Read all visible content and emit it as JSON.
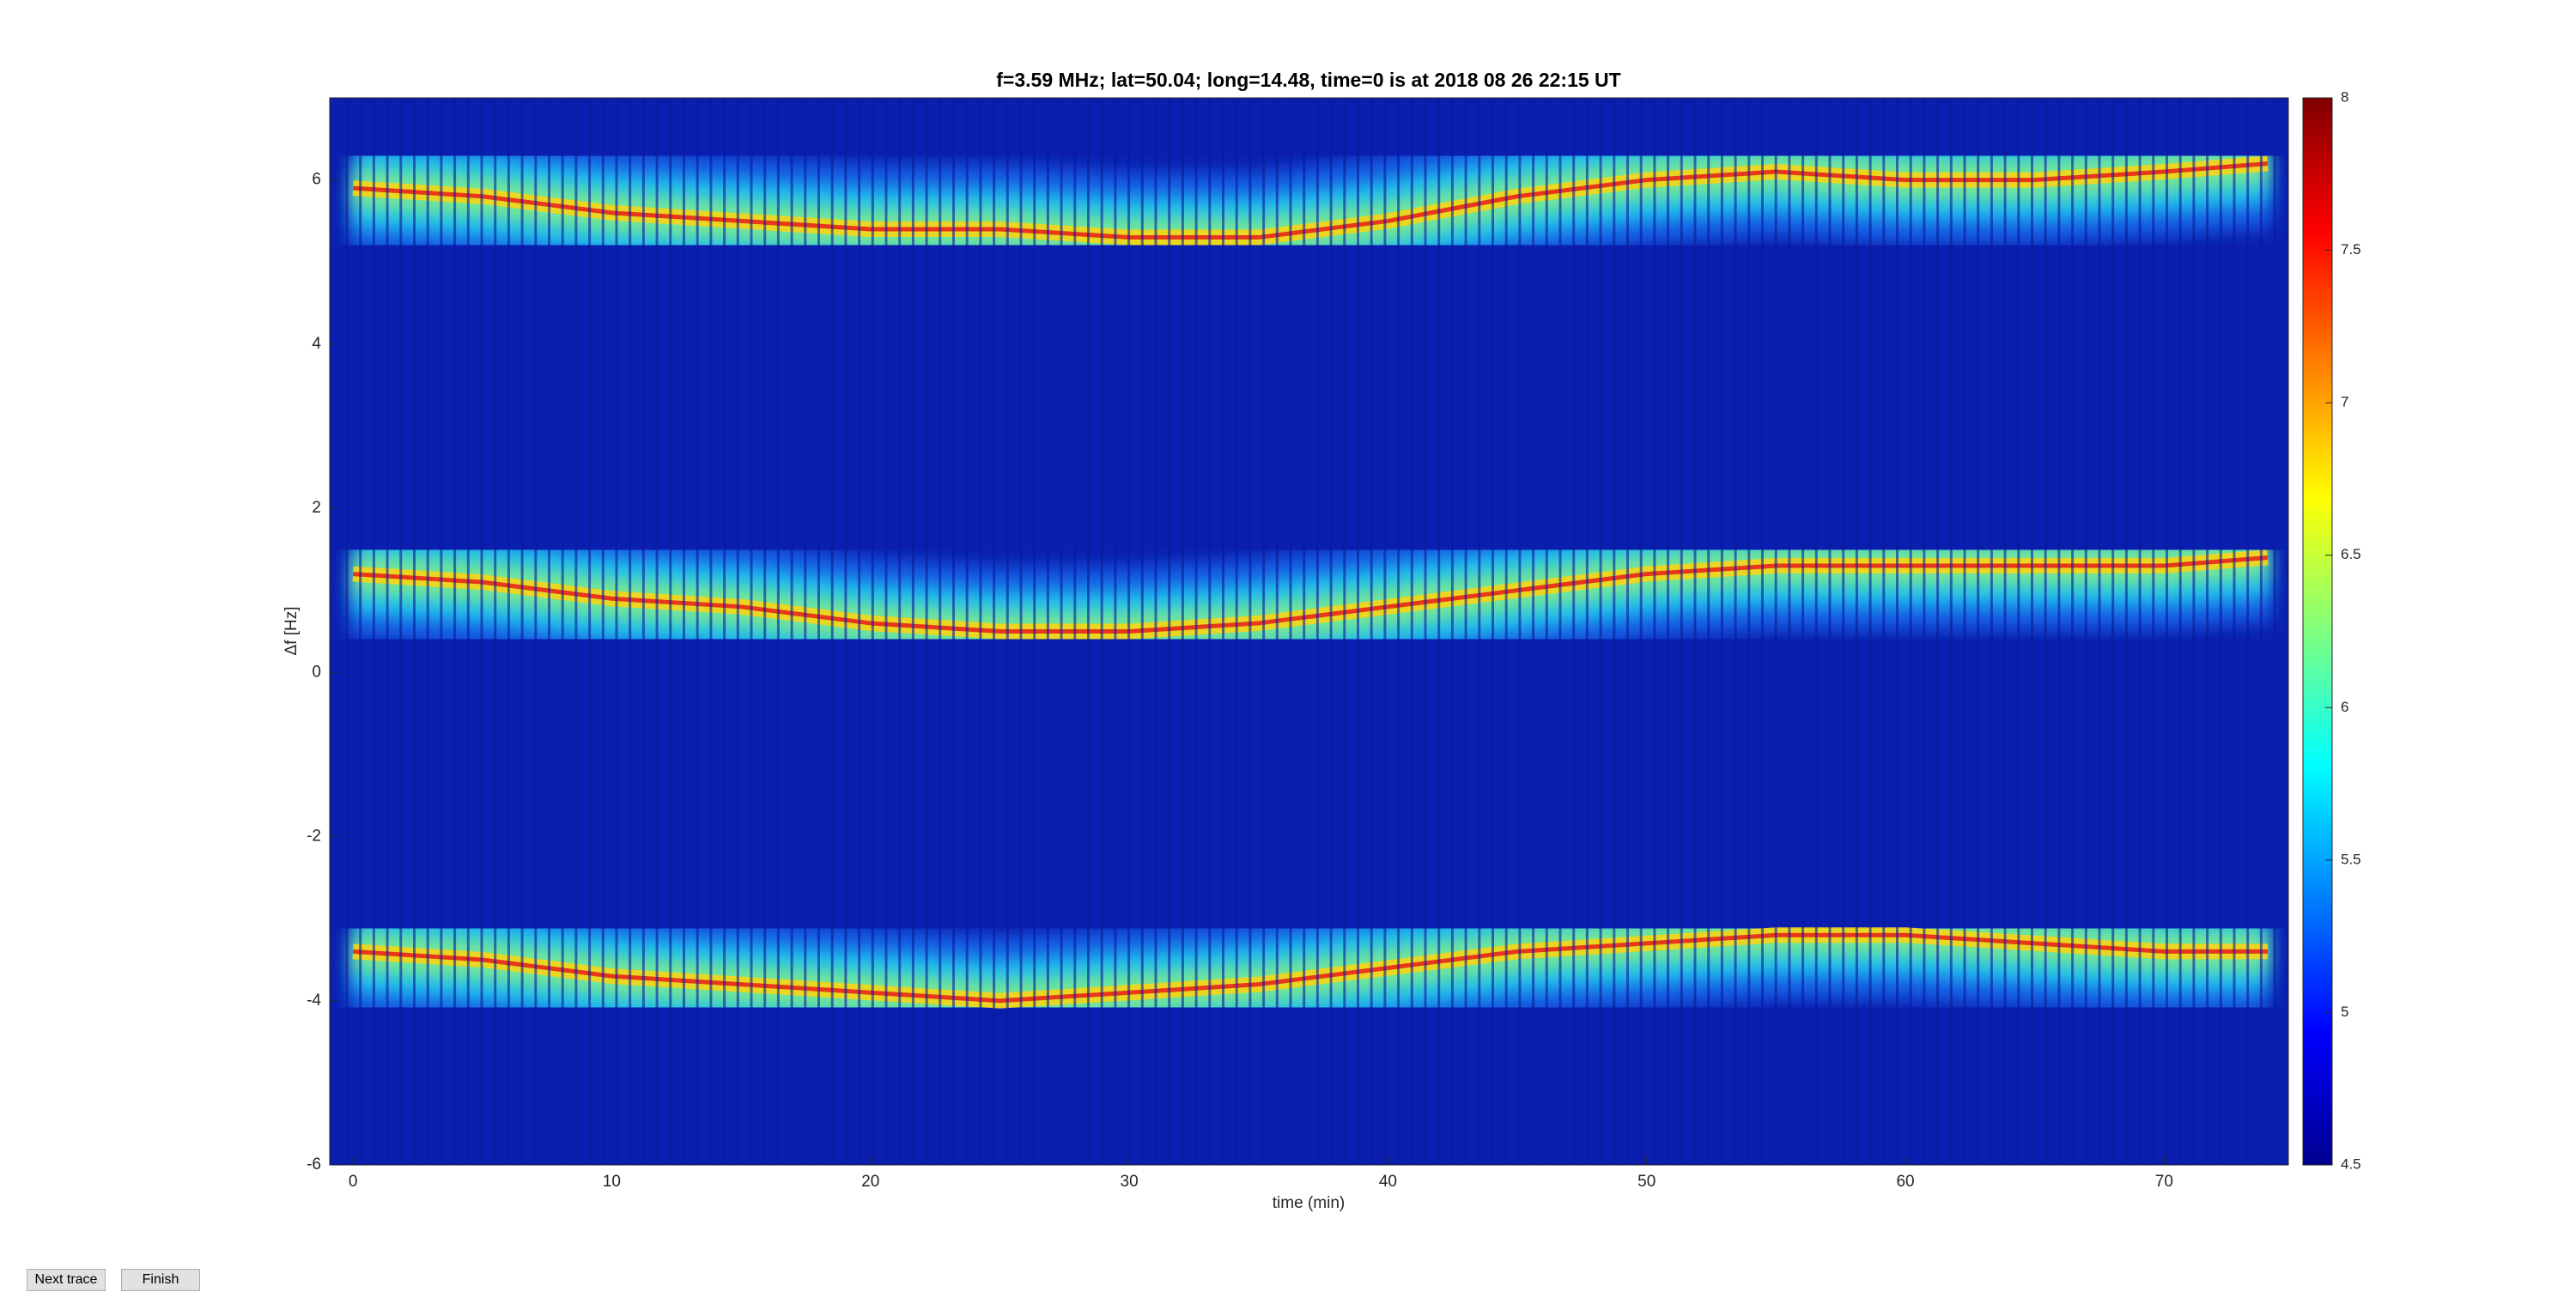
{
  "chart_data": {
    "type": "spectrogram",
    "title": "f=3.59 MHz;  lat=50.04; long=14.48, time=0 is at 2018 08 26 22:15 UT",
    "x_label": "time (min)",
    "y_label": "Δf [Hz]",
    "xlim": [
      -0.9,
      74.8
    ],
    "xticks": [
      0,
      10,
      20,
      30,
      40,
      50,
      60,
      70
    ],
    "ylim": [
      -6,
      7
    ],
    "yticks": [
      -6,
      -4,
      -2,
      0,
      2,
      4,
      6
    ],
    "colorbar": {
      "lim": [
        4.5,
        8
      ],
      "ticks": [
        4.5,
        5,
        5.5,
        6,
        6.5,
        7,
        7.5,
        8
      ]
    },
    "x": [
      0,
      5,
      10,
      15,
      20,
      25,
      30,
      35,
      40,
      45,
      50,
      55,
      60,
      65,
      70,
      74
    ],
    "series": [
      {
        "values": [
          5.9,
          5.8,
          5.6,
          5.5,
          5.4,
          5.4,
          5.3,
          5.3,
          5.5,
          5.8,
          6.0,
          6.1,
          6.0,
          6.0,
          6.1,
          6.2
        ]
      },
      {
        "values": [
          1.2,
          1.1,
          0.9,
          0.8,
          0.6,
          0.5,
          0.5,
          0.6,
          0.8,
          1.0,
          1.2,
          1.3,
          1.3,
          1.3,
          1.3,
          1.4
        ]
      },
      {
        "values": [
          -3.4,
          -3.5,
          -3.7,
          -3.8,
          -3.9,
          -4.0,
          -3.9,
          -3.8,
          -3.6,
          -3.4,
          -3.3,
          -3.2,
          -3.2,
          -3.3,
          -3.4,
          -3.4
        ]
      }
    ]
  },
  "buttons": [
    "Next trace",
    "Finish"
  ]
}
